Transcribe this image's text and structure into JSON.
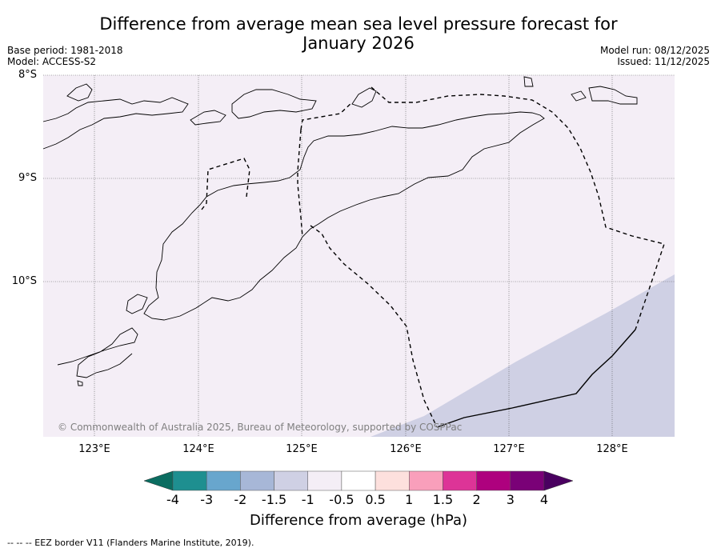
{
  "header": {
    "title_line1": "Difference from average mean sea level pressure forecast for",
    "title_line2": "January 2026",
    "base_period": "Base period: 1981-2018",
    "model": "Model: ACCESS-S2",
    "model_run": "Model run: 08/12/2025",
    "issued": "Issued: 11/12/2025"
  },
  "map": {
    "lat_labels": [
      "8°S",
      "9°S",
      "10°S"
    ],
    "lon_labels": [
      "123°E",
      "124°E",
      "125°E",
      "126°E",
      "127°E",
      "128°E"
    ],
    "background_color": "#f4eef6",
    "anomaly_region_color": "#cfd0e4",
    "copyright": "© Commonwealth of Australia 2025, Bureau of Meteorology, supported by COSPPac"
  },
  "colorbar": {
    "title": "Difference from average (hPa)",
    "ticks": [
      "-4",
      "-3",
      "-2",
      "-1.5",
      "-1",
      "-0.5",
      "0.5",
      "1",
      "1.5",
      "2",
      "3",
      "4"
    ],
    "colors": [
      "#1e8f90",
      "#68a6cd",
      "#a7b7d7",
      "#cfd0e4",
      "#f4eef6",
      "#ffffff",
      "#fde0dd",
      "#f99fbb",
      "#dd3497",
      "#ae017e",
      "#7a0177"
    ],
    "under_color": "#0b6d61",
    "over_color": "#4a0060"
  },
  "footer": {
    "legend_text": "--  --  -- EEZ border V11 (Flanders Marine Institute, 2019)."
  }
}
